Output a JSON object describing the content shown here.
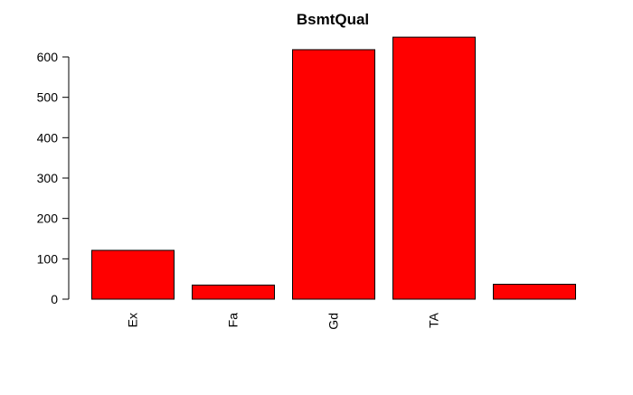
{
  "chart_data": {
    "type": "bar",
    "title": "BsmtQual",
    "xlabel": "",
    "ylabel": "",
    "categories": [
      "Ex",
      "Fa",
      "Gd",
      "TA",
      ""
    ],
    "values": [
      121,
      35,
      618,
      649,
      37
    ],
    "y_ticks": [
      "0",
      "100",
      "200",
      "300",
      "400",
      "500",
      "600"
    ],
    "ylim": [
      0,
      650
    ],
    "grid": false,
    "legend": "none",
    "bar_color": "#ff0000",
    "bar_border_color": "#000000"
  }
}
